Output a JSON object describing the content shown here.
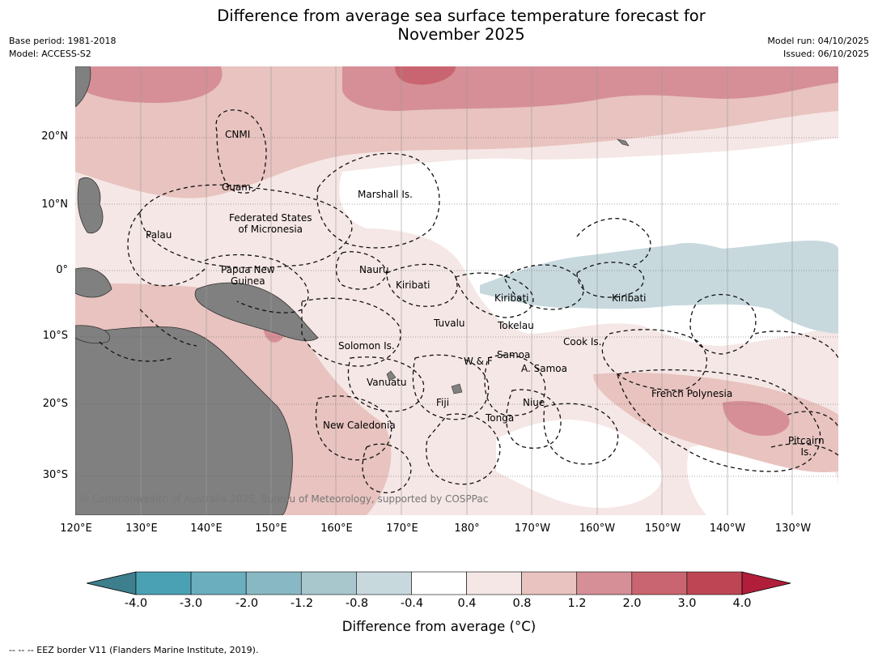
{
  "title_line1": "Difference from average sea surface temperature forecast for",
  "title_line2": "November 2025",
  "base_period": "Base period: 1981-2018",
  "model": "Model: ACCESS-S2",
  "model_run": "Model run: 04/10/2025",
  "issued": "Issued: 06/10/2025",
  "lat_labels": [
    "20°N",
    "10°N",
    "0°",
    "10°S",
    "20°S",
    "30°S"
  ],
  "lon_labels": [
    "120°E",
    "130°E",
    "140°E",
    "150°E",
    "160°E",
    "170°E",
    "180°",
    "170°W",
    "160°W",
    "150°W",
    "140°W",
    "130°W"
  ],
  "places": {
    "cnmi": "CNMI",
    "guam": "Guam",
    "marshall": "Marshall Is.",
    "fsm1": "Federated States",
    "fsm2": "of Micronesia",
    "palau": "Palau",
    "png1": "Papua New",
    "png2": "Guinea",
    "nauru": "Nauru",
    "kiribati_w": "Kiribati",
    "kiribati_c": "Kiribati",
    "kiribati_e": "Kiribati",
    "tuvalu": "Tuvalu",
    "tokelau": "Tokelau",
    "cook": "Cook Is.",
    "solomon": "Solomon Is.",
    "samoa": "Samoa",
    "wf": "W & F",
    "asamoa": "A. Samoa",
    "vanuatu": "Vanuatu",
    "fiji": "Fiji",
    "niue": "Niue",
    "tonga": "Tonga",
    "french_polynesia": "French Polynesia",
    "new_caledonia": "New Caledonia",
    "pitcairn1": "Pitcairn",
    "pitcairn2": "Is."
  },
  "copyright": "© Commonwealth of Australia 2025, Bureau of Meteorology, supported by COSPPac",
  "colorbar": {
    "labels": [
      "-4.0",
      "-3.0",
      "-2.0",
      "-1.2",
      "-0.8",
      "-0.4",
      "0.4",
      "0.8",
      "1.2",
      "2.0",
      "3.0",
      "4.0"
    ],
    "colors": [
      "#4ba1b4",
      "#6bafbe",
      "#88b8c3",
      "#a8c7cd",
      "#c8d9de",
      "#ffffff",
      "#f5e7e5",
      "#e8c3bf",
      "#d68f97",
      "#c96570",
      "#be4654"
    ],
    "under_color": "#3d7f8c",
    "over_color": "#b01e3a",
    "title": "Difference from average (°C)"
  },
  "land_color": "#808080",
  "footnote": "--  --  -- EEZ border V11 (Flanders Marine Institute, 2019)."
}
